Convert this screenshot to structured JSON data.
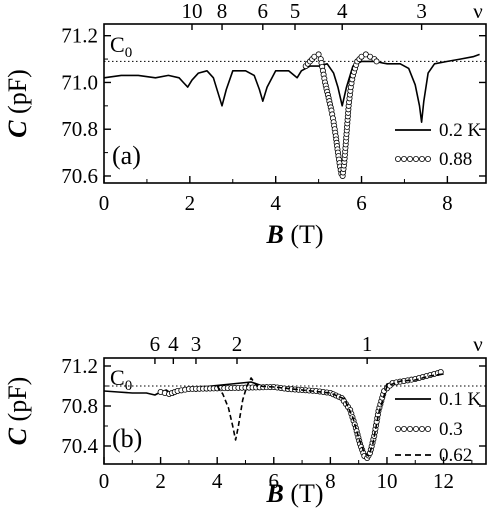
{
  "chart_data": [
    {
      "type": "line",
      "panel_label": "(a)",
      "xlabel_sym": "B",
      "xlabel_unit": "(T)",
      "ylabel_sym": "C",
      "ylabel_unit": "(pF)",
      "reference_label": "C",
      "reference_sub": "0",
      "reference_value": 71.09,
      "nu_symbol": "ν",
      "xlim": [
        0,
        8.9
      ],
      "ylim": [
        70.57,
        71.25
      ],
      "xticks": [
        0,
        2,
        4,
        6,
        8
      ],
      "yticks": [
        70.6,
        70.8,
        71.0,
        71.2
      ],
      "ytick_labels": [
        "70.6",
        "70.8",
        "71.0",
        "71.2"
      ],
      "nu_ticks": [
        {
          "label": "10",
          "x": 2.05
        },
        {
          "label": "8",
          "x": 2.75
        },
        {
          "label": "6",
          "x": 3.7
        },
        {
          "label": "5",
          "x": 4.45
        },
        {
          "label": "4",
          "x": 5.55
        },
        {
          "label": "3",
          "x": 7.4
        }
      ],
      "series": [
        {
          "name": "0.2 K",
          "style": "solid",
          "x": [
            0,
            0.4,
            0.8,
            1.2,
            1.5,
            1.75,
            1.85,
            1.95,
            2.05,
            2.2,
            2.4,
            2.55,
            2.65,
            2.75,
            2.85,
            3.0,
            3.3,
            3.5,
            3.62,
            3.7,
            3.8,
            4.0,
            4.3,
            4.5,
            4.6,
            4.8,
            5.0,
            5.2,
            5.35,
            5.45,
            5.55,
            5.65,
            5.8,
            6.0,
            6.3,
            6.6,
            6.9,
            7.1,
            7.25,
            7.35,
            7.4,
            7.45,
            7.55,
            7.7,
            8.0,
            8.3,
            8.6,
            8.75
          ],
          "y": [
            71.02,
            71.03,
            71.03,
            71.02,
            71.03,
            71.02,
            71.0,
            70.98,
            71.01,
            71.04,
            71.05,
            71.02,
            70.96,
            70.9,
            70.97,
            71.05,
            71.05,
            71.03,
            70.97,
            70.92,
            70.98,
            71.05,
            71.05,
            71.02,
            71.05,
            71.07,
            71.07,
            71.08,
            71.04,
            70.98,
            70.9,
            70.98,
            71.07,
            71.09,
            71.09,
            71.08,
            71.08,
            71.06,
            70.99,
            70.9,
            70.83,
            70.92,
            71.04,
            71.08,
            71.09,
            71.1,
            71.11,
            71.12
          ]
        },
        {
          "name": "0.88",
          "style": "circles",
          "x": [
            4.7,
            4.8,
            4.9,
            5.0,
            5.05,
            5.1,
            5.15,
            5.2,
            5.25,
            5.3,
            5.35,
            5.4,
            5.45,
            5.5,
            5.53,
            5.56,
            5.6,
            5.65,
            5.7,
            5.75,
            5.8,
            5.9,
            6.0,
            6.1,
            6.2,
            6.3,
            6.4
          ],
          "y": [
            71.07,
            71.09,
            71.11,
            71.12,
            71.1,
            71.05,
            71.0,
            70.96,
            70.92,
            70.88,
            70.83,
            70.77,
            70.7,
            70.64,
            70.61,
            70.6,
            70.66,
            70.78,
            70.9,
            70.98,
            71.03,
            71.09,
            71.11,
            71.12,
            71.11,
            71.1,
            71.08
          ]
        }
      ]
    },
    {
      "type": "line",
      "panel_label": "(b)",
      "xlabel_sym": "B",
      "xlabel_unit": "(T)",
      "ylabel_sym": "C",
      "ylabel_unit": "(pF)",
      "reference_label": "C",
      "reference_sub": "0",
      "reference_value": 71.0,
      "nu_symbol": "ν",
      "xlim": [
        0,
        13.5
      ],
      "ylim": [
        70.22,
        71.28
      ],
      "xticks": [
        0,
        2,
        4,
        6,
        8,
        10,
        12
      ],
      "yticks": [
        70.4,
        70.8,
        71.2
      ],
      "ytick_labels": [
        "70.4",
        "70.8",
        "71.2"
      ],
      "nu_ticks": [
        {
          "label": "6",
          "x": 1.8
        },
        {
          "label": "4",
          "x": 2.45
        },
        {
          "label": "3",
          "x": 3.25
        },
        {
          "label": "2",
          "x": 4.7
        },
        {
          "label": "1",
          "x": 9.3
        }
      ],
      "series": [
        {
          "name": "0.1 K",
          "style": "solid",
          "x": [
            0,
            0.5,
            1.0,
            1.5,
            1.8,
            2.0,
            2.2,
            2.45,
            2.7,
            3.0,
            3.25,
            3.5,
            3.8,
            5.2,
            5.6,
            6.0,
            7.0,
            8.0,
            8.5,
            8.8,
            9.0,
            9.2,
            9.3,
            9.4,
            9.6,
            9.8,
            10.0,
            10.5,
            11.0,
            11.5,
            12.0
          ],
          "y": [
            70.95,
            70.94,
            70.93,
            70.93,
            70.91,
            70.94,
            70.96,
            70.91,
            70.96,
            70.98,
            70.95,
            70.99,
            71.0,
            71.04,
            71.0,
            70.99,
            70.97,
            70.94,
            70.88,
            70.7,
            70.5,
            70.34,
            70.3,
            70.34,
            70.62,
            70.9,
            71.02,
            71.05,
            71.07,
            71.1,
            71.12
          ]
        },
        {
          "name": "0.3",
          "style": "circles",
          "x": [
            2.0,
            2.3,
            2.6,
            3.0,
            6.0,
            6.5,
            7.0,
            7.5,
            8.0,
            8.4,
            8.7,
            8.9,
            9.05,
            9.2,
            9.3,
            9.4,
            9.55,
            9.7,
            9.9,
            10.2,
            10.6,
            11.0,
            11.4,
            11.8,
            12.0
          ],
          "y": [
            70.94,
            70.92,
            70.95,
            70.97,
            70.99,
            70.97,
            70.96,
            70.95,
            70.93,
            70.88,
            70.76,
            70.58,
            70.42,
            70.3,
            70.28,
            70.33,
            70.5,
            70.75,
            70.95,
            71.03,
            71.05,
            71.07,
            71.1,
            71.13,
            71.15
          ]
        },
        {
          "name": "0.62",
          "style": "dashed",
          "x": [
            4.0,
            4.2,
            4.4,
            4.55,
            4.65,
            4.75,
            4.9,
            5.05,
            5.2,
            5.4,
            6.0,
            7.0,
            8.0,
            8.5,
            8.8,
            9.0,
            9.2,
            9.35,
            9.5,
            9.7,
            10.0,
            10.5,
            11.0,
            11.5,
            12.0
          ],
          "y": [
            71.0,
            70.92,
            70.78,
            70.6,
            70.46,
            70.6,
            70.86,
            71.0,
            71.08,
            71.0,
            70.99,
            70.96,
            70.93,
            70.87,
            70.68,
            70.48,
            70.33,
            70.3,
            70.42,
            70.72,
            71.0,
            71.05,
            71.06,
            71.1,
            71.12
          ]
        }
      ]
    }
  ]
}
